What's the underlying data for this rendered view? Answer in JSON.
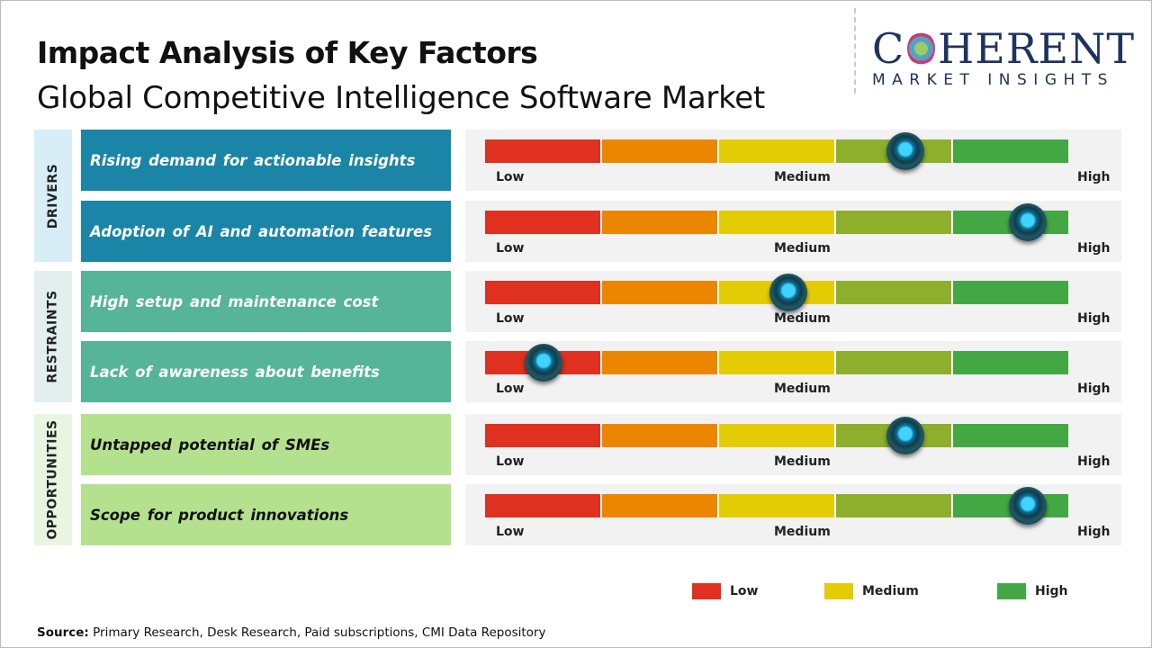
{
  "header": {
    "title": "Impact Analysis of Key Factors",
    "subtitle": "Global Competitive Intelligence Software Market"
  },
  "logo": {
    "line1_left": "C",
    "line1_right": "HERENT",
    "line2": "MARKET INSIGHTS"
  },
  "chart_data": {
    "type": "gauge",
    "scale_labels": {
      "low": "Low",
      "medium": "Medium",
      "high": "High"
    },
    "segment_colors": [
      "#e03020",
      "#ec8500",
      "#e4cc05",
      "#8daf2b",
      "#43a843"
    ],
    "categories": [
      {
        "name": "DRIVERS",
        "bg": "#d8eef7",
        "box": "#1a85a6",
        "text": "#ffffff",
        "factors": [
          {
            "label": "Rising demand for actionable insights",
            "impact": 0.72
          },
          {
            "label": "Adoption of AI and automation features",
            "impact": 0.93
          }
        ]
      },
      {
        "name": "RESTRAINTS",
        "bg": "#e2efec",
        "box": "#55b596",
        "text": "#ffffff",
        "factors": [
          {
            "label": "High setup and maintenance cost",
            "impact": 0.52
          },
          {
            "label": "Lack of awareness about benefits",
            "impact": 0.1
          }
        ]
      },
      {
        "name": "OPPORTUNITIES",
        "bg": "#eaf5e1",
        "box": "#b4e18e",
        "text": "#111111",
        "factors": [
          {
            "label": "Untapped potential of SMEs",
            "impact": 0.72
          },
          {
            "label": "Scope for product innovations",
            "impact": 0.93
          }
        ]
      }
    ],
    "legend": [
      {
        "label": "Low",
        "color": "#e03020"
      },
      {
        "label": "Medium",
        "color": "#e4cc05"
      },
      {
        "label": "High",
        "color": "#43a843"
      }
    ]
  },
  "footer": {
    "source_label": "Source:",
    "source_text": " Primary Research, Desk Research, Paid subscriptions, CMI Data Repository"
  }
}
